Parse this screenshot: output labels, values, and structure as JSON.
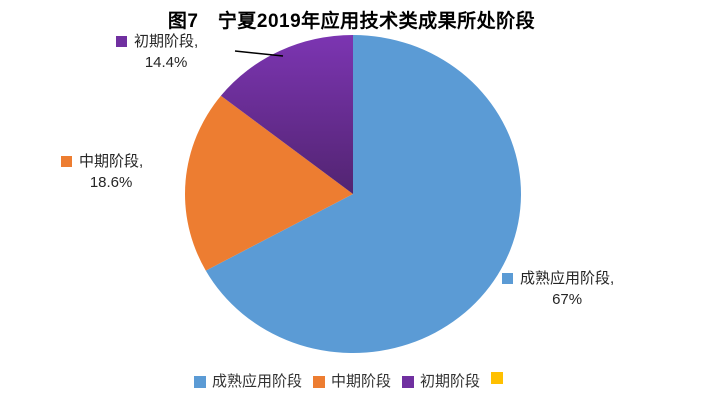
{
  "chart_data": {
    "type": "pie",
    "title": "图7　宁夏2019年应用技术类成果所处阶段",
    "categories": [
      "成熟应用阶段",
      "中期阶段",
      "初期阶段",
      ""
    ],
    "values": [
      67,
      18.6,
      14.4,
      0
    ],
    "unit": "%",
    "start_angle_deg": 0,
    "direction": "clockwise",
    "legend_position": "bottom",
    "colors": [
      "#5B9BD5",
      "#ED7D31",
      "#7030A0",
      "#FFC000"
    ],
    "purple_gradient": {
      "top": "#7C35B2",
      "bottom": "#522471"
    },
    "data_labels": [
      {
        "line1": "成熟应用阶段,",
        "line2": "67%"
      },
      {
        "line1": "中期阶段,",
        "line2": "18.6%"
      },
      {
        "line1": "初期阶段,",
        "line2": "14.4%"
      }
    ],
    "legend": [
      {
        "label": "成熟应用阶段",
        "color": "#5B9BD5"
      },
      {
        "label": "中期阶段",
        "color": "#ED7D31"
      },
      {
        "label": "初期阶段",
        "color": "#7030A0"
      },
      {
        "label": "",
        "color": "#FFC000"
      }
    ]
  }
}
